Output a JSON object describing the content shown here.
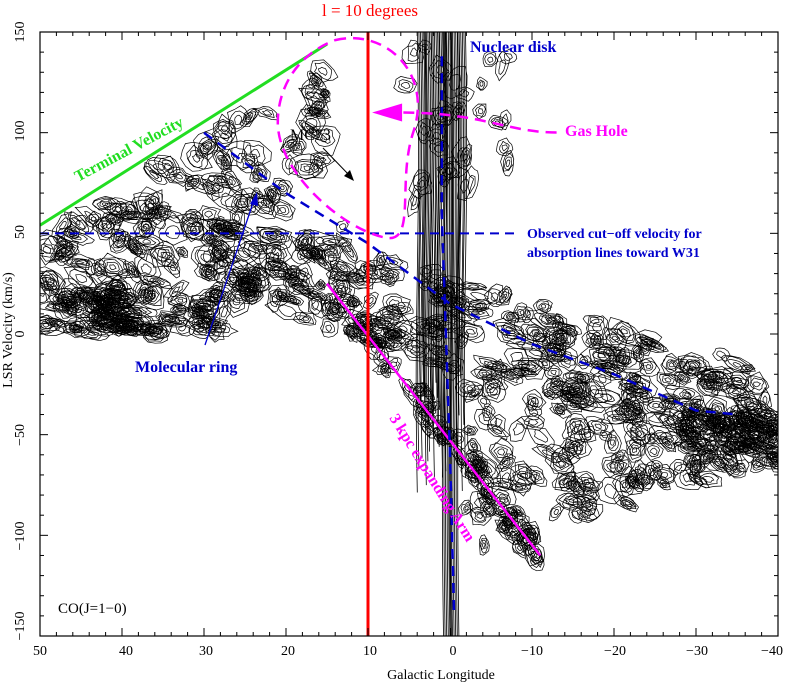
{
  "chart_data": {
    "type": "contour",
    "title": "l = 10 degrees",
    "xlabel": "Galactic Longitude",
    "ylabel": "LSR Velocity (km/s)",
    "xlim": [
      50,
      -40
    ],
    "ylim": [
      -150,
      150
    ],
    "x_ticks": [
      50,
      40,
      30,
      20,
      10,
      0,
      -10,
      -20,
      -30,
      -40
    ],
    "x_tick_labels": [
      "50",
      "40",
      "30",
      "20",
      "10",
      "0",
      "−10",
      "−20",
      "−30",
      "−40"
    ],
    "y_ticks": [
      150,
      100,
      50,
      0,
      -50,
      -100,
      -150
    ],
    "y_tick_labels": [
      "150",
      "100",
      "50",
      "0",
      "−50",
      "−100",
      "−150"
    ],
    "panel_label": "CO(J=1−0)",
    "marker_line": {
      "label": "l = 10 degrees",
      "x": 10,
      "color": "#ff0000"
    },
    "cutoff_line": {
      "y": 50,
      "color": "#0000cc",
      "label_line1": "Observed cut−off velocity for",
      "label_line2": "absorption lines toward W31"
    },
    "annotations": {
      "terminal_velocity": {
        "text": "Terminal Velocity",
        "color": "#22dd22"
      },
      "nuclear_disk": {
        "text": "Nuclear disk",
        "color": "#0000cc"
      },
      "gas_hole": {
        "text": "Gas Hole",
        "color": "#ff00ff"
      },
      "mc73": {
        "text": "MC73",
        "color": "#000000"
      },
      "molecular_ring": {
        "text": "Molecular ring",
        "color": "#0000cc"
      },
      "expanding_arm": {
        "text": "3 kpc expanding Arm",
        "color": "#ff00ff"
      }
    },
    "series": [
      {
        "name": "Terminal Velocity",
        "x": [
          50,
          15
        ],
        "y": [
          54,
          144
        ]
      },
      {
        "name": "3 kpc expanding Arm",
        "x": [
          15,
          -11
        ],
        "y": [
          25,
          -110
        ]
      },
      {
        "name": "Molecular ring",
        "x": [
          30,
          20,
          10,
          0,
          -10,
          -20,
          -30,
          -35
        ],
        "y": [
          100,
          70,
          45,
          15,
          -5,
          -20,
          -38,
          -40
        ]
      },
      {
        "name": "Nuclear disk",
        "x": [
          1,
          1,
          0,
          -0.5
        ],
        "y": [
          138,
          60,
          -60,
          -140
        ]
      }
    ]
  }
}
